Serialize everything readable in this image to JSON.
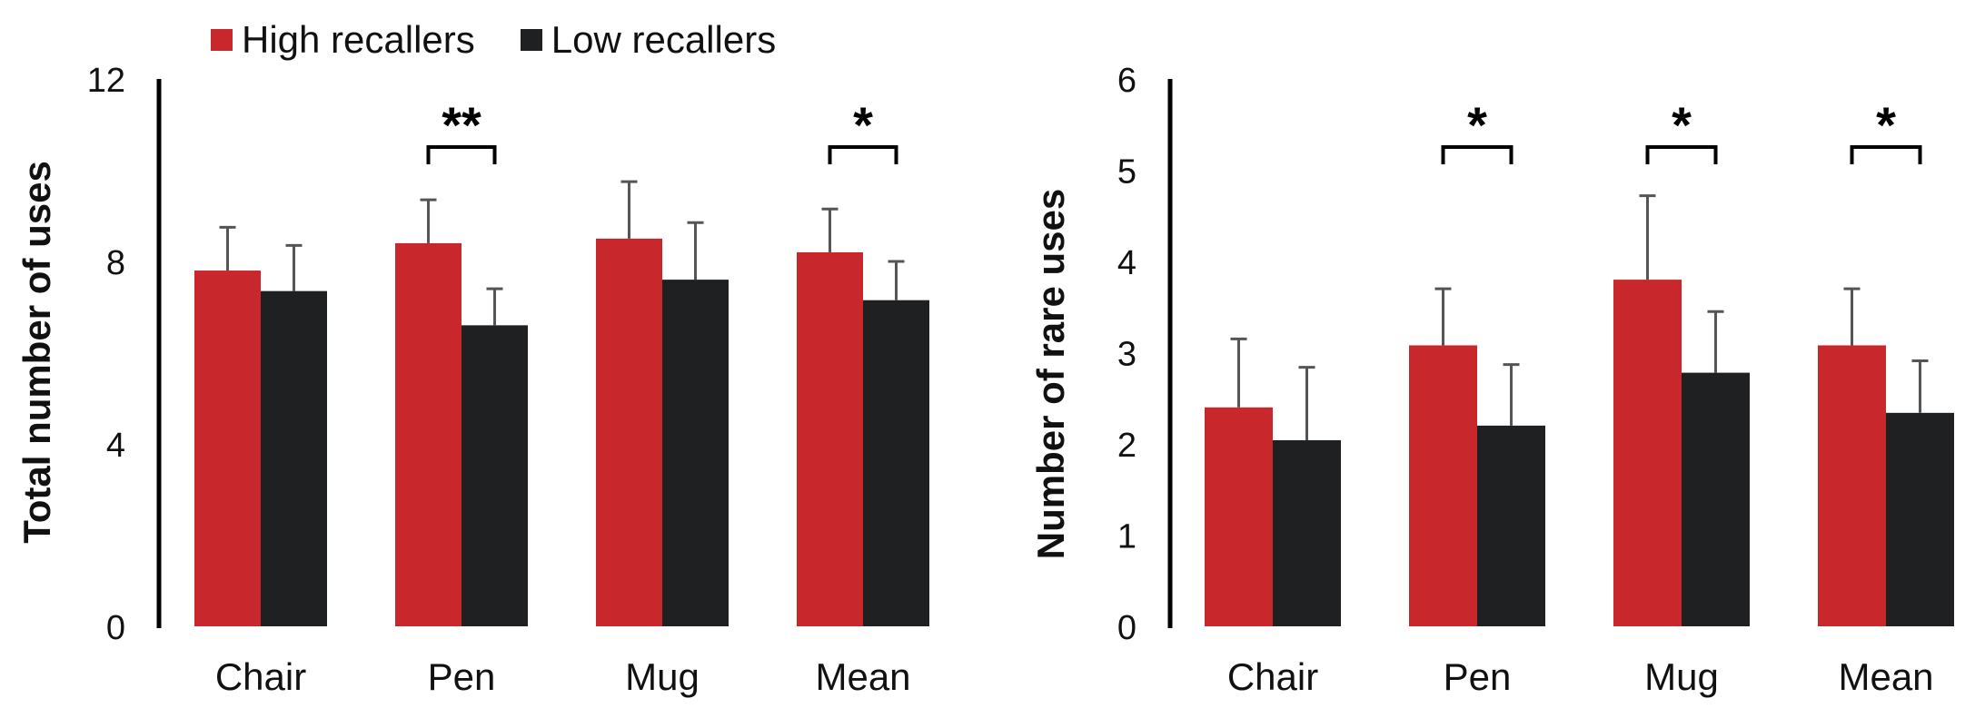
{
  "legend": {
    "high_label": "High recallers",
    "low_label": "Low recallers"
  },
  "colors": {
    "high": "#c8282b",
    "low": "#1f2022",
    "error": "#555555",
    "axis": "#000000"
  },
  "chart_data": [
    {
      "type": "bar",
      "ylabel": "Total number of uses",
      "xlabel": "",
      "ylim": [
        0,
        12
      ],
      "yticks": [
        0,
        4,
        8,
        12
      ],
      "categories": [
        "Chair",
        "Pen",
        "Mug",
        "Mean"
      ],
      "series": [
        {
          "name": "High recallers",
          "values": [
            7.8,
            8.4,
            8.5,
            8.2
          ],
          "errors": [
            0.95,
            0.95,
            1.25,
            0.95
          ]
        },
        {
          "name": "Low recallers",
          "values": [
            7.35,
            6.6,
            7.6,
            7.15
          ],
          "errors": [
            1.0,
            0.8,
            1.25,
            0.85
          ]
        }
      ],
      "significance": [
        "",
        "**",
        "",
        "*"
      ],
      "grid": false
    },
    {
      "type": "bar",
      "ylabel": "Number of rare uses",
      "xlabel": "",
      "ylim": [
        0,
        6
      ],
      "yticks": [
        0,
        1,
        2,
        3,
        4,
        5,
        6
      ],
      "categories": [
        "Chair",
        "Pen",
        "Mug",
        "Mean"
      ],
      "series": [
        {
          "name": "High recallers",
          "values": [
            2.4,
            3.08,
            3.8,
            3.08
          ],
          "errors": [
            0.75,
            0.62,
            0.92,
            0.62
          ]
        },
        {
          "name": "Low recallers",
          "values": [
            2.04,
            2.2,
            2.78,
            2.34
          ],
          "errors": [
            0.8,
            0.67,
            0.67,
            0.57
          ]
        }
      ],
      "significance": [
        "",
        "*",
        "*",
        "*"
      ],
      "grid": false
    }
  ]
}
